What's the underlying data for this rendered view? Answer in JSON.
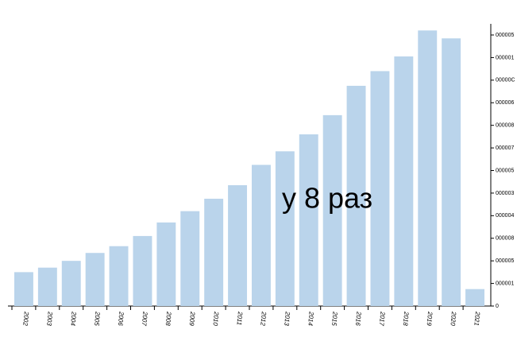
{
  "chart_data": {
    "type": "bar",
    "annotation": "у 8 раз",
    "categories": [
      "2002",
      "2003",
      "2004",
      "2005",
      "2006",
      "2007",
      "2008",
      "2009",
      "2010",
      "2011",
      "2012",
      "2013",
      "2014",
      "2015",
      "2016",
      "2017",
      "2018",
      "2019",
      "2020",
      "2021"
    ],
    "values": [
      1.5,
      1.7,
      2.0,
      2.35,
      2.65,
      3.1,
      3.7,
      4.2,
      4.75,
      5.35,
      6.25,
      6.85,
      7.6,
      8.45,
      9.75,
      10.4,
      11.05,
      12.2,
      11.85,
      0.75
    ],
    "color": "#bad4eb",
    "ylim": [
      0,
      12.5
    ],
    "yticks": [
      0,
      {
        "value": 1,
        "label": "000001"
      },
      {
        "value": 2,
        "label": "000005"
      },
      {
        "value": 3,
        "label": "000008"
      },
      {
        "value": 4,
        "label": "000004"
      },
      {
        "value": 5,
        "label": "000003"
      },
      {
        "value": 6,
        "label": "000005"
      },
      {
        "value": 7,
        "label": "000007"
      },
      {
        "value": 8,
        "label": "000008"
      },
      {
        "value": 9,
        "label": "000006"
      },
      {
        "value": 10,
        "label": "00000C"
      },
      {
        "value": 11,
        "label": "000001"
      },
      {
        "value": 12,
        "label": "000005"
      }
    ]
  }
}
